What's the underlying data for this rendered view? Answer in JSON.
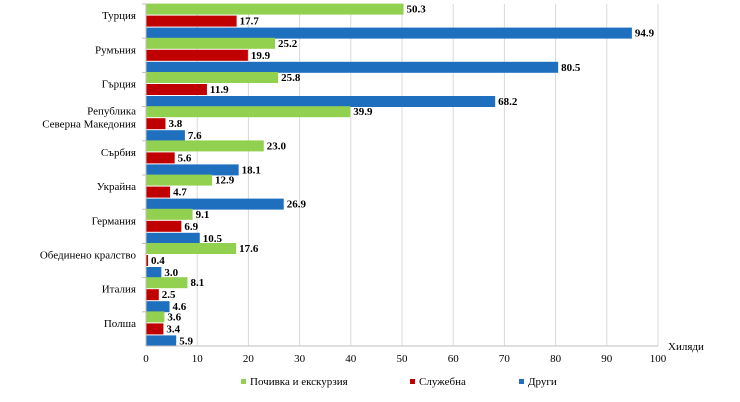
{
  "chart_data": {
    "type": "bar",
    "orientation": "horizontal",
    "categories": [
      "Турция",
      "Румъния",
      "Гърция",
      "Република Северна Македония",
      "Сърбия",
      "Украйна",
      "Германия",
      "Обединено кралство",
      "Италия",
      "Полша"
    ],
    "series": [
      {
        "name": "Почивка и екскурзия",
        "color": "#92d050",
        "values": [
          50.3,
          25.2,
          25.8,
          39.9,
          23.0,
          12.9,
          9.1,
          17.6,
          8.1,
          3.6
        ],
        "labels": [
          "50.3",
          "25.2",
          "25.8",
          "39.9",
          "23.0",
          "12.9",
          "9.1",
          "17.6",
          "8.1",
          "3.6"
        ]
      },
      {
        "name": "Служебна",
        "color": "#c00000",
        "values": [
          17.7,
          19.9,
          11.9,
          3.8,
          5.6,
          4.7,
          6.9,
          0.4,
          2.5,
          3.4
        ],
        "labels": [
          "17.7",
          "19.9",
          "11.9",
          "3.8",
          "5.6",
          "4.7",
          "6.9",
          "0.4",
          "2.5",
          "3.4"
        ]
      },
      {
        "name": "Други",
        "color": "#1f6fbf",
        "values": [
          94.9,
          80.5,
          68.2,
          7.6,
          18.1,
          26.9,
          10.5,
          3.0,
          4.6,
          5.9
        ],
        "labels": [
          "94.9",
          "80.5",
          "68.2",
          "7.6",
          "18.1",
          "26.9",
          "10.5",
          "3.0",
          "4.6",
          "5.9"
        ]
      }
    ],
    "xlim": [
      0,
      100
    ],
    "xticks": [
      "0",
      "10",
      "20",
      "30",
      "40",
      "50",
      "60",
      "70",
      "80",
      "90",
      "100"
    ],
    "xlabel": "Хиляди",
    "grid": true,
    "legend_position": "bottom",
    "title": ""
  }
}
